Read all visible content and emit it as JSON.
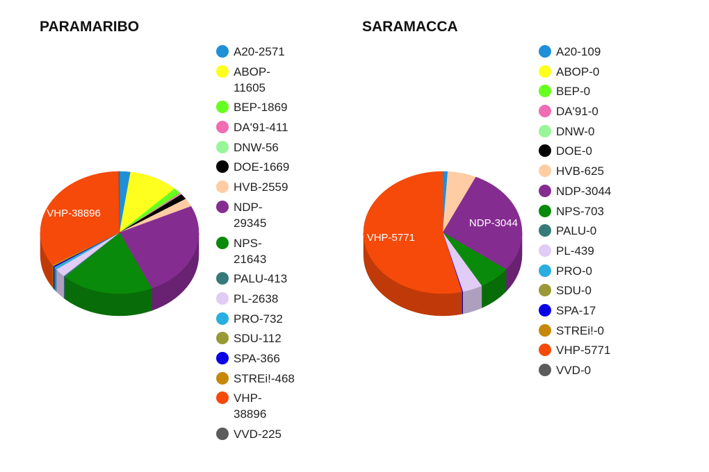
{
  "chart_data": [
    {
      "type": "pie",
      "title": "PARAMARIBO",
      "slices": [
        {
          "label": "A20-2571",
          "value": 2571,
          "color": "#1f8fd8"
        },
        {
          "label": "ABOP-11605",
          "value": 11605,
          "color": "#ffff1f"
        },
        {
          "label": "BEP-1869",
          "value": 1869,
          "color": "#66ff1f"
        },
        {
          "label": "DA'91-411",
          "value": 411,
          "color": "#f06db4"
        },
        {
          "label": "DNW-56",
          "value": 56,
          "color": "#99f599"
        },
        {
          "label": "DOE-1669",
          "value": 1669,
          "color": "#000000"
        },
        {
          "label": "HVB-2559",
          "value": 2559,
          "color": "#ffcca3"
        },
        {
          "label": "NDP-29345",
          "value": 29345,
          "color": "#852c91"
        },
        {
          "label": "NPS-21643",
          "value": 21643,
          "color": "#0a8a0a"
        },
        {
          "label": "PALU-413",
          "value": 413,
          "color": "#357a78"
        },
        {
          "label": "PL-2638",
          "value": 2638,
          "color": "#e0ccf5"
        },
        {
          "label": "PRO-732",
          "value": 732,
          "color": "#29aee0"
        },
        {
          "label": "SDU-112",
          "value": 112,
          "color": "#999936"
        },
        {
          "label": "SPA-366",
          "value": 366,
          "color": "#0a00e6"
        },
        {
          "label": "STREi!-468",
          "value": 468,
          "color": "#c7880a"
        },
        {
          "label": "VHP-38896",
          "value": 38896,
          "color": "#f54a0a"
        },
        {
          "label": "VVD-225",
          "value": 225,
          "color": "#5c5c5c"
        }
      ],
      "data_labels": [
        "VHP-38896"
      ]
    },
    {
      "type": "pie",
      "title": "SARAMACCA",
      "slices": [
        {
          "label": "A20-109",
          "value": 109,
          "color": "#1f8fd8"
        },
        {
          "label": "ABOP-0",
          "value": 0,
          "color": "#ffff1f"
        },
        {
          "label": "BEP-0",
          "value": 0,
          "color": "#66ff1f"
        },
        {
          "label": "DA'91-0",
          "value": 0,
          "color": "#f06db4"
        },
        {
          "label": "DNW-0",
          "value": 0,
          "color": "#99f599"
        },
        {
          "label": "DOE-0",
          "value": 0,
          "color": "#000000"
        },
        {
          "label": "HVB-625",
          "value": 625,
          "color": "#ffcca3"
        },
        {
          "label": "NDP-3044",
          "value": 3044,
          "color": "#852c91"
        },
        {
          "label": "NPS-703",
          "value": 703,
          "color": "#0a8a0a"
        },
        {
          "label": "PALU-0",
          "value": 0,
          "color": "#357a78"
        },
        {
          "label": "PL-439",
          "value": 439,
          "color": "#e0ccf5"
        },
        {
          "label": "PRO-0",
          "value": 0,
          "color": "#29aee0"
        },
        {
          "label": "SDU-0",
          "value": 0,
          "color": "#999936"
        },
        {
          "label": "SPA-17",
          "value": 17,
          "color": "#0a00e6"
        },
        {
          "label": "STREi!-0",
          "value": 0,
          "color": "#c7880a"
        },
        {
          "label": "VHP-5771",
          "value": 5771,
          "color": "#f54a0a"
        },
        {
          "label": "VVD-0",
          "value": 0,
          "color": "#5c5c5c"
        }
      ],
      "data_labels": [
        "VHP-5771",
        "NDP-3044"
      ]
    }
  ]
}
